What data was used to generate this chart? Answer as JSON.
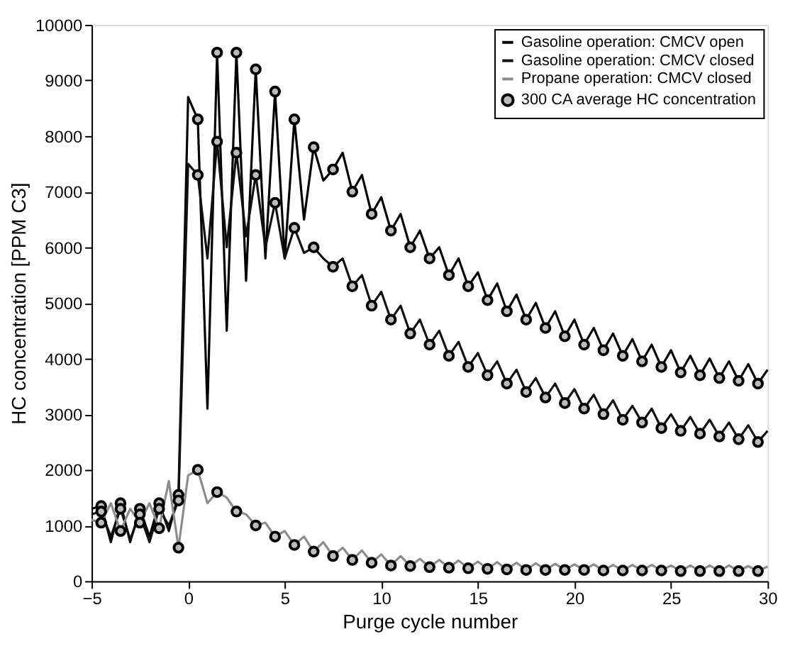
{
  "chart_data": {
    "type": "line",
    "xlabel": "Purge cycle number",
    "ylabel": "HC concentration [PPM C3]",
    "x": [
      -5,
      -4.5,
      -4,
      -3.5,
      -3,
      -2.5,
      -2,
      -1.5,
      -1,
      -0.5,
      0,
      0.5,
      1,
      1.5,
      2,
      2.5,
      3,
      3.5,
      4,
      4.5,
      5,
      5.5,
      6,
      6.5,
      7,
      7.5,
      8,
      8.5,
      9,
      9.5,
      10,
      10.5,
      11,
      11.5,
      12,
      12.5,
      13,
      13.5,
      14,
      14.5,
      15,
      15.5,
      16,
      16.5,
      17,
      17.5,
      18,
      18.5,
      19,
      19.5,
      20,
      20.5,
      21,
      21.5,
      22,
      22.5,
      23,
      23.5,
      24,
      24.5,
      25,
      25.5,
      26,
      26.5,
      27,
      27.5,
      28,
      28.5,
      29,
      29.5,
      30
    ],
    "series": [
      {
        "name": "Gasoline operation: CMCV open",
        "color": "#000000",
        "values": [
          1300,
          1350,
          700,
          1400,
          700,
          1300,
          800,
          1400,
          900,
          1550,
          8700,
          8300,
          3100,
          9500,
          4500,
          9500,
          5400,
          9200,
          5800,
          8800,
          5800,
          8300,
          6500,
          7800,
          7200,
          7400,
          7700,
          7000,
          7300,
          6600,
          6900,
          6300,
          6600,
          6000,
          6300,
          5800,
          6000,
          5500,
          5800,
          5300,
          5550,
          5050,
          5350,
          4850,
          5150,
          4700,
          5000,
          4550,
          4850,
          4400,
          4700,
          4250,
          4550,
          4150,
          4450,
          4050,
          4350,
          3950,
          4250,
          3850,
          4150,
          3750,
          4050,
          3700,
          4000,
          3650,
          3950,
          3600,
          3900,
          3550,
          3800
        ]
      },
      {
        "name": "Gasoline operation: CMCV closed",
        "color": "#111111",
        "values": [
          1200,
          1250,
          800,
          1300,
          750,
          1200,
          700,
          1300,
          1000,
          1450,
          7500,
          7300,
          5800,
          7900,
          6000,
          7700,
          6200,
          7300,
          6000,
          6800,
          5800,
          6350,
          5900,
          6000,
          5800,
          5650,
          5800,
          5300,
          5500,
          4950,
          5200,
          4700,
          4950,
          4450,
          4700,
          4250,
          4500,
          4050,
          4300,
          3850,
          4100,
          3700,
          3950,
          3550,
          3800,
          3400,
          3650,
          3300,
          3550,
          3200,
          3450,
          3100,
          3350,
          3000,
          3250,
          2900,
          3150,
          2850,
          3100,
          2750,
          3000,
          2700,
          2950,
          2650,
          2900,
          2600,
          2850,
          2550,
          2800,
          2500,
          2700
        ]
      },
      {
        "name": "Propane operation: CMCV closed",
        "color": "#8c8c8c",
        "values": [
          1100,
          1050,
          1400,
          900,
          1300,
          1050,
          1400,
          950,
          1800,
          600,
          1900,
          2000,
          1400,
          1600,
          1500,
          1250,
          1200,
          1000,
          1050,
          800,
          900,
          650,
          800,
          530,
          700,
          450,
          600,
          380,
          550,
          330,
          480,
          280,
          450,
          270,
          400,
          250,
          380,
          240,
          370,
          230,
          350,
          220,
          340,
          210,
          330,
          200,
          320,
          200,
          310,
          200,
          300,
          200,
          300,
          190,
          290,
          190,
          290,
          190,
          290,
          190,
          280,
          180,
          280,
          180,
          280,
          180,
          280,
          180,
          270,
          180,
          260
        ]
      },
      {
        "name": "300 CA average HC concentration",
        "type": "scatter",
        "marker": "circle",
        "color": "#000000",
        "x": [
          -4.5,
          -3.5,
          -2.5,
          -1.5,
          -0.5,
          0.5,
          1.5,
          2.5,
          3.5,
          4.5,
          5.5,
          6.5,
          7.5,
          8.5,
          9.5,
          10.5,
          11.5,
          12.5,
          13.5,
          14.5,
          15.5,
          16.5,
          17.5,
          18.5,
          19.5,
          20.5,
          21.5,
          22.5,
          23.5,
          24.5,
          25.5,
          26.5,
          27.5,
          28.5,
          29.5,
          -4.5,
          -3.5,
          -2.5,
          -1.5,
          -0.5,
          0.5,
          1.5,
          2.5,
          3.5,
          4.5,
          5.5,
          6.5,
          7.5,
          8.5,
          9.5,
          10.5,
          11.5,
          12.5,
          13.5,
          14.5,
          15.5,
          16.5,
          17.5,
          18.5,
          19.5,
          20.5,
          21.5,
          22.5,
          23.5,
          24.5,
          25.5,
          26.5,
          27.5,
          28.5,
          29.5,
          -4.5,
          -3.5,
          -2.5,
          -1.5,
          -0.5,
          0.5,
          1.5,
          2.5,
          3.5,
          4.5,
          5.5,
          6.5,
          7.5,
          8.5,
          9.5,
          10.5,
          11.5,
          12.5,
          13.5,
          14.5,
          15.5,
          16.5,
          17.5,
          18.5,
          19.5,
          20.5,
          21.5,
          22.5,
          23.5,
          24.5,
          25.5,
          26.5,
          27.5,
          28.5,
          29.5
        ],
        "values": [
          1350,
          1400,
          1300,
          1400,
          1550,
          8300,
          9500,
          9500,
          9200,
          8800,
          8300,
          7800,
          7400,
          7000,
          6600,
          6300,
          6000,
          5800,
          5500,
          5300,
          5050,
          4850,
          4700,
          4550,
          4400,
          4250,
          4150,
          4050,
          3950,
          3850,
          3750,
          3700,
          3650,
          3600,
          3550,
          1250,
          1300,
          1200,
          1300,
          1450,
          7300,
          7900,
          7700,
          7300,
          6800,
          6350,
          6000,
          5650,
          5300,
          4950,
          4700,
          4450,
          4250,
          4050,
          3850,
          3700,
          3550,
          3400,
          3300,
          3200,
          3100,
          3000,
          2900,
          2850,
          2750,
          2700,
          2650,
          2600,
          2550,
          2500,
          1050,
          900,
          1050,
          950,
          600,
          2000,
          1600,
          1250,
          1000,
          800,
          650,
          530,
          450,
          380,
          330,
          280,
          270,
          250,
          240,
          230,
          220,
          210,
          200,
          200,
          200,
          200,
          190,
          190,
          190,
          190,
          180,
          180,
          180,
          180,
          180
        ]
      }
    ],
    "xlim": [
      -5,
      30
    ],
    "xticks": [
      -5,
      0,
      5,
      10,
      15,
      20,
      25,
      30
    ],
    "ylim": [
      0,
      10000
    ],
    "yticks": [
      0,
      1000,
      2000,
      3000,
      4000,
      5000,
      6000,
      7000,
      8000,
      9000,
      10000
    ],
    "grid": false,
    "legend": "top right",
    "marker": "none",
    "line_style": "solid"
  }
}
